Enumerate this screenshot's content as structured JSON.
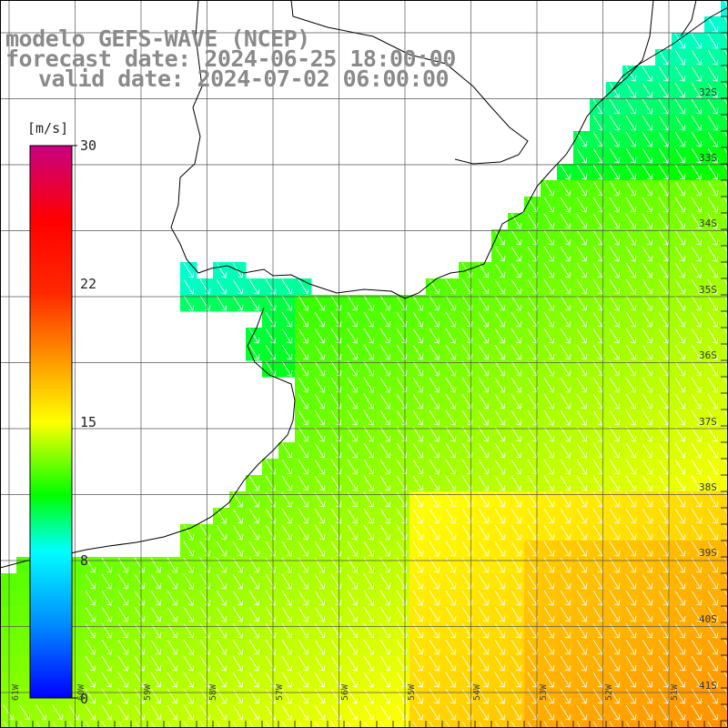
{
  "title": {
    "line1": "modelo GEFS-WAVE (NCEP)",
    "line2": "forecast date: 2024-06-25 18:00:00",
    "line3": "valid date: 2024-07-02 06:00:00"
  },
  "colorbar": {
    "unit": "[m/s]",
    "ticks": [
      "30",
      "22",
      "15",
      "8",
      "0"
    ],
    "min": 0,
    "max": 30
  },
  "lat_labels": [
    "32S",
    "33S",
    "34S",
    "35S",
    "36S",
    "37S",
    "38S",
    "39S",
    "40S",
    "41S"
  ],
  "lon_labels": [
    "61W",
    "60W",
    "59W",
    "58W",
    "57W",
    "56W",
    "55W",
    "54W",
    "53W",
    "52W",
    "51W"
  ],
  "colors": {
    "land": "#ffffff",
    "coast": "#000000",
    "grid": "#555555",
    "arrow": "#ffffff",
    "title": "#8a8a8a"
  }
}
